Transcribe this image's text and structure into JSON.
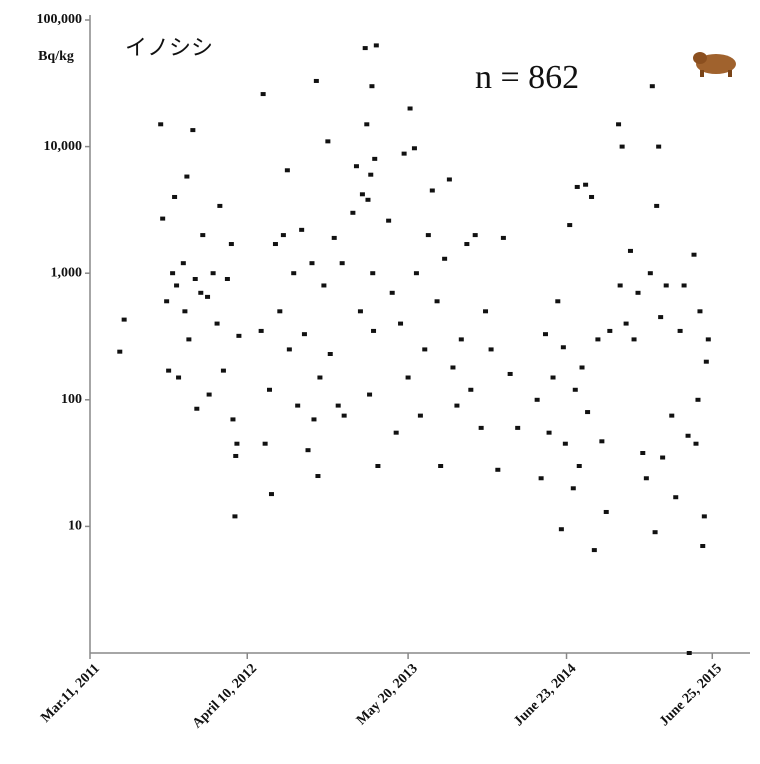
{
  "chart_data": {
    "type": "scatter",
    "title": "イノシシ",
    "ylabel": "Bq/kg",
    "annotation": "n = 862",
    "color": "#111111",
    "log_y": true,
    "ylim": [
      1,
      100000
    ],
    "yticks": [
      {
        "value": 10,
        "label": "10"
      },
      {
        "value": 100,
        "label": "100"
      },
      {
        "value": 1000,
        "label": "1,000"
      },
      {
        "value": 10000,
        "label": "10,000"
      },
      {
        "value": 100000,
        "label": "100,000"
      }
    ],
    "xlim": [
      "2011-03-11",
      "2015-09-28"
    ],
    "xticks": [
      {
        "value": "2011-03-11",
        "label": "Mar.11, 2011"
      },
      {
        "value": "2012-04-10",
        "label": "April 10, 2012"
      },
      {
        "value": "2013-05-20",
        "label": "May 20, 2013"
      },
      {
        "value": "2014-06-23",
        "label": "June 23, 2014"
      },
      {
        "value": "2015-06-25",
        "label": "June 25, 2015"
      }
    ],
    "x": [
      "2011-05-25",
      "2011-06-05",
      "2011-09-05",
      "2011-09-10",
      "2011-09-20",
      "2011-09-25",
      "2011-10-05",
      "2011-10-10",
      "2011-10-15",
      "2011-10-20",
      "2011-11-01",
      "2011-11-05",
      "2011-11-10",
      "2011-11-15",
      "2011-11-25",
      "2011-12-01",
      "2011-12-05",
      "2011-12-15",
      "2011-12-20",
      "2012-01-01",
      "2012-01-05",
      "2012-01-15",
      "2012-01-25",
      "2012-02-01",
      "2012-02-10",
      "2012-02-20",
      "2012-03-01",
      "2012-03-05",
      "2012-03-10",
      "2012-03-12",
      "2012-03-15",
      "2012-03-20",
      "2012-05-15",
      "2012-05-20",
      "2012-05-25",
      "2012-06-05",
      "2012-06-10",
      "2012-06-20",
      "2012-07-01",
      "2012-07-10",
      "2012-07-20",
      "2012-07-25",
      "2012-08-05",
      "2012-08-15",
      "2012-08-25",
      "2012-09-01",
      "2012-09-10",
      "2012-09-20",
      "2012-09-25",
      "2012-10-01",
      "2012-10-05",
      "2012-10-10",
      "2012-10-20",
      "2012-10-30",
      "2012-11-05",
      "2012-11-15",
      "2012-11-25",
      "2012-12-05",
      "2012-12-10",
      "2013-01-01",
      "2013-01-10",
      "2013-01-20",
      "2013-01-25",
      "2013-02-01",
      "2013-02-05",
      "2013-02-08",
      "2013-02-12",
      "2013-02-15",
      "2013-02-18",
      "2013-02-20",
      "2013-02-22",
      "2013-02-25",
      "2013-03-01",
      "2013-03-05",
      "2013-04-01",
      "2013-04-10",
      "2013-04-20",
      "2013-05-01",
      "2013-05-10",
      "2013-05-20",
      "2013-05-25",
      "2013-06-05",
      "2013-06-10",
      "2013-06-20",
      "2013-07-01",
      "2013-07-10",
      "2013-07-20",
      "2013-08-01",
      "2013-08-10",
      "2013-08-20",
      "2013-09-01",
      "2013-09-10",
      "2013-09-20",
      "2013-10-01",
      "2013-10-15",
      "2013-10-25",
      "2013-11-05",
      "2013-11-20",
      "2013-12-01",
      "2013-12-15",
      "2014-01-01",
      "2014-01-15",
      "2014-02-01",
      "2014-02-20",
      "2014-04-10",
      "2014-04-20",
      "2014-05-01",
      "2014-05-10",
      "2014-05-20",
      "2014-06-01",
      "2014-06-10",
      "2014-06-15",
      "2014-06-20",
      "2014-07-01",
      "2014-07-10",
      "2014-07-15",
      "2014-07-20",
      "2014-07-25",
      "2014-08-01",
      "2014-08-10",
      "2014-08-15",
      "2014-08-25",
      "2014-09-01",
      "2014-09-10",
      "2014-09-20",
      "2014-10-01",
      "2014-10-10",
      "2014-11-01",
      "2014-11-05",
      "2014-11-10",
      "2014-11-20",
      "2014-12-01",
      "2014-12-10",
      "2014-12-20",
      "2015-01-01",
      "2015-01-10",
      "2015-01-20",
      "2015-01-25",
      "2015-02-01",
      "2015-02-05",
      "2015-02-10",
      "2015-02-15",
      "2015-02-20",
      "2015-03-01",
      "2015-03-15",
      "2015-03-25",
      "2015-04-05",
      "2015-04-15",
      "2015-04-25",
      "2015-04-28",
      "2015-05-10",
      "2015-05-15",
      "2015-05-20",
      "2015-05-25",
      "2015-06-01",
      "2015-06-05",
      "2015-06-10",
      "2015-06-15"
    ],
    "values": [
      240,
      430,
      15000,
      2700,
      600,
      170,
      1000,
      4000,
      800,
      150,
      1200,
      500,
      5800,
      300,
      13500,
      900,
      85,
      700,
      2000,
      650,
      110,
      1000,
      400,
      3400,
      170,
      900,
      1700,
      70,
      12,
      36,
      45,
      320,
      350,
      26000,
      45,
      120,
      18,
      1700,
      500,
      2000,
      6500,
      250,
      1000,
      90,
      2200,
      330,
      40,
      1200,
      70,
      33000,
      25,
      150,
      800,
      11000,
      230,
      1900,
      90,
      1200,
      75,
      3000,
      7000,
      500,
      4200,
      60000,
      15000,
      3800,
      110,
      6000,
      30000,
      1000,
      350,
      8000,
      63000,
      30,
      2600,
      700,
      55,
      400,
      8800,
      150,
      20000,
      9700,
      1000,
      75,
      250,
      2000,
      4500,
      600,
      30,
      1300,
      5500,
      180,
      90,
      300,
      1700,
      120,
      2000,
      60,
      500,
      250,
      28,
      1900,
      160,
      60,
      100,
      24,
      330,
      55,
      150,
      600,
      9.5,
      260,
      45,
      2400,
      20,
      120,
      4800,
      30,
      180,
      5000,
      80,
      4000,
      6.5,
      300,
      47,
      13,
      350,
      15000,
      800,
      10000,
      400,
      1500,
      300,
      700,
      38,
      24,
      1000,
      30000,
      9,
      3400,
      10000,
      450,
      35,
      800,
      75,
      17,
      350,
      800,
      52,
      1,
      1400,
      45,
      100,
      500,
      7,
      12,
      200,
      300
    ]
  }
}
